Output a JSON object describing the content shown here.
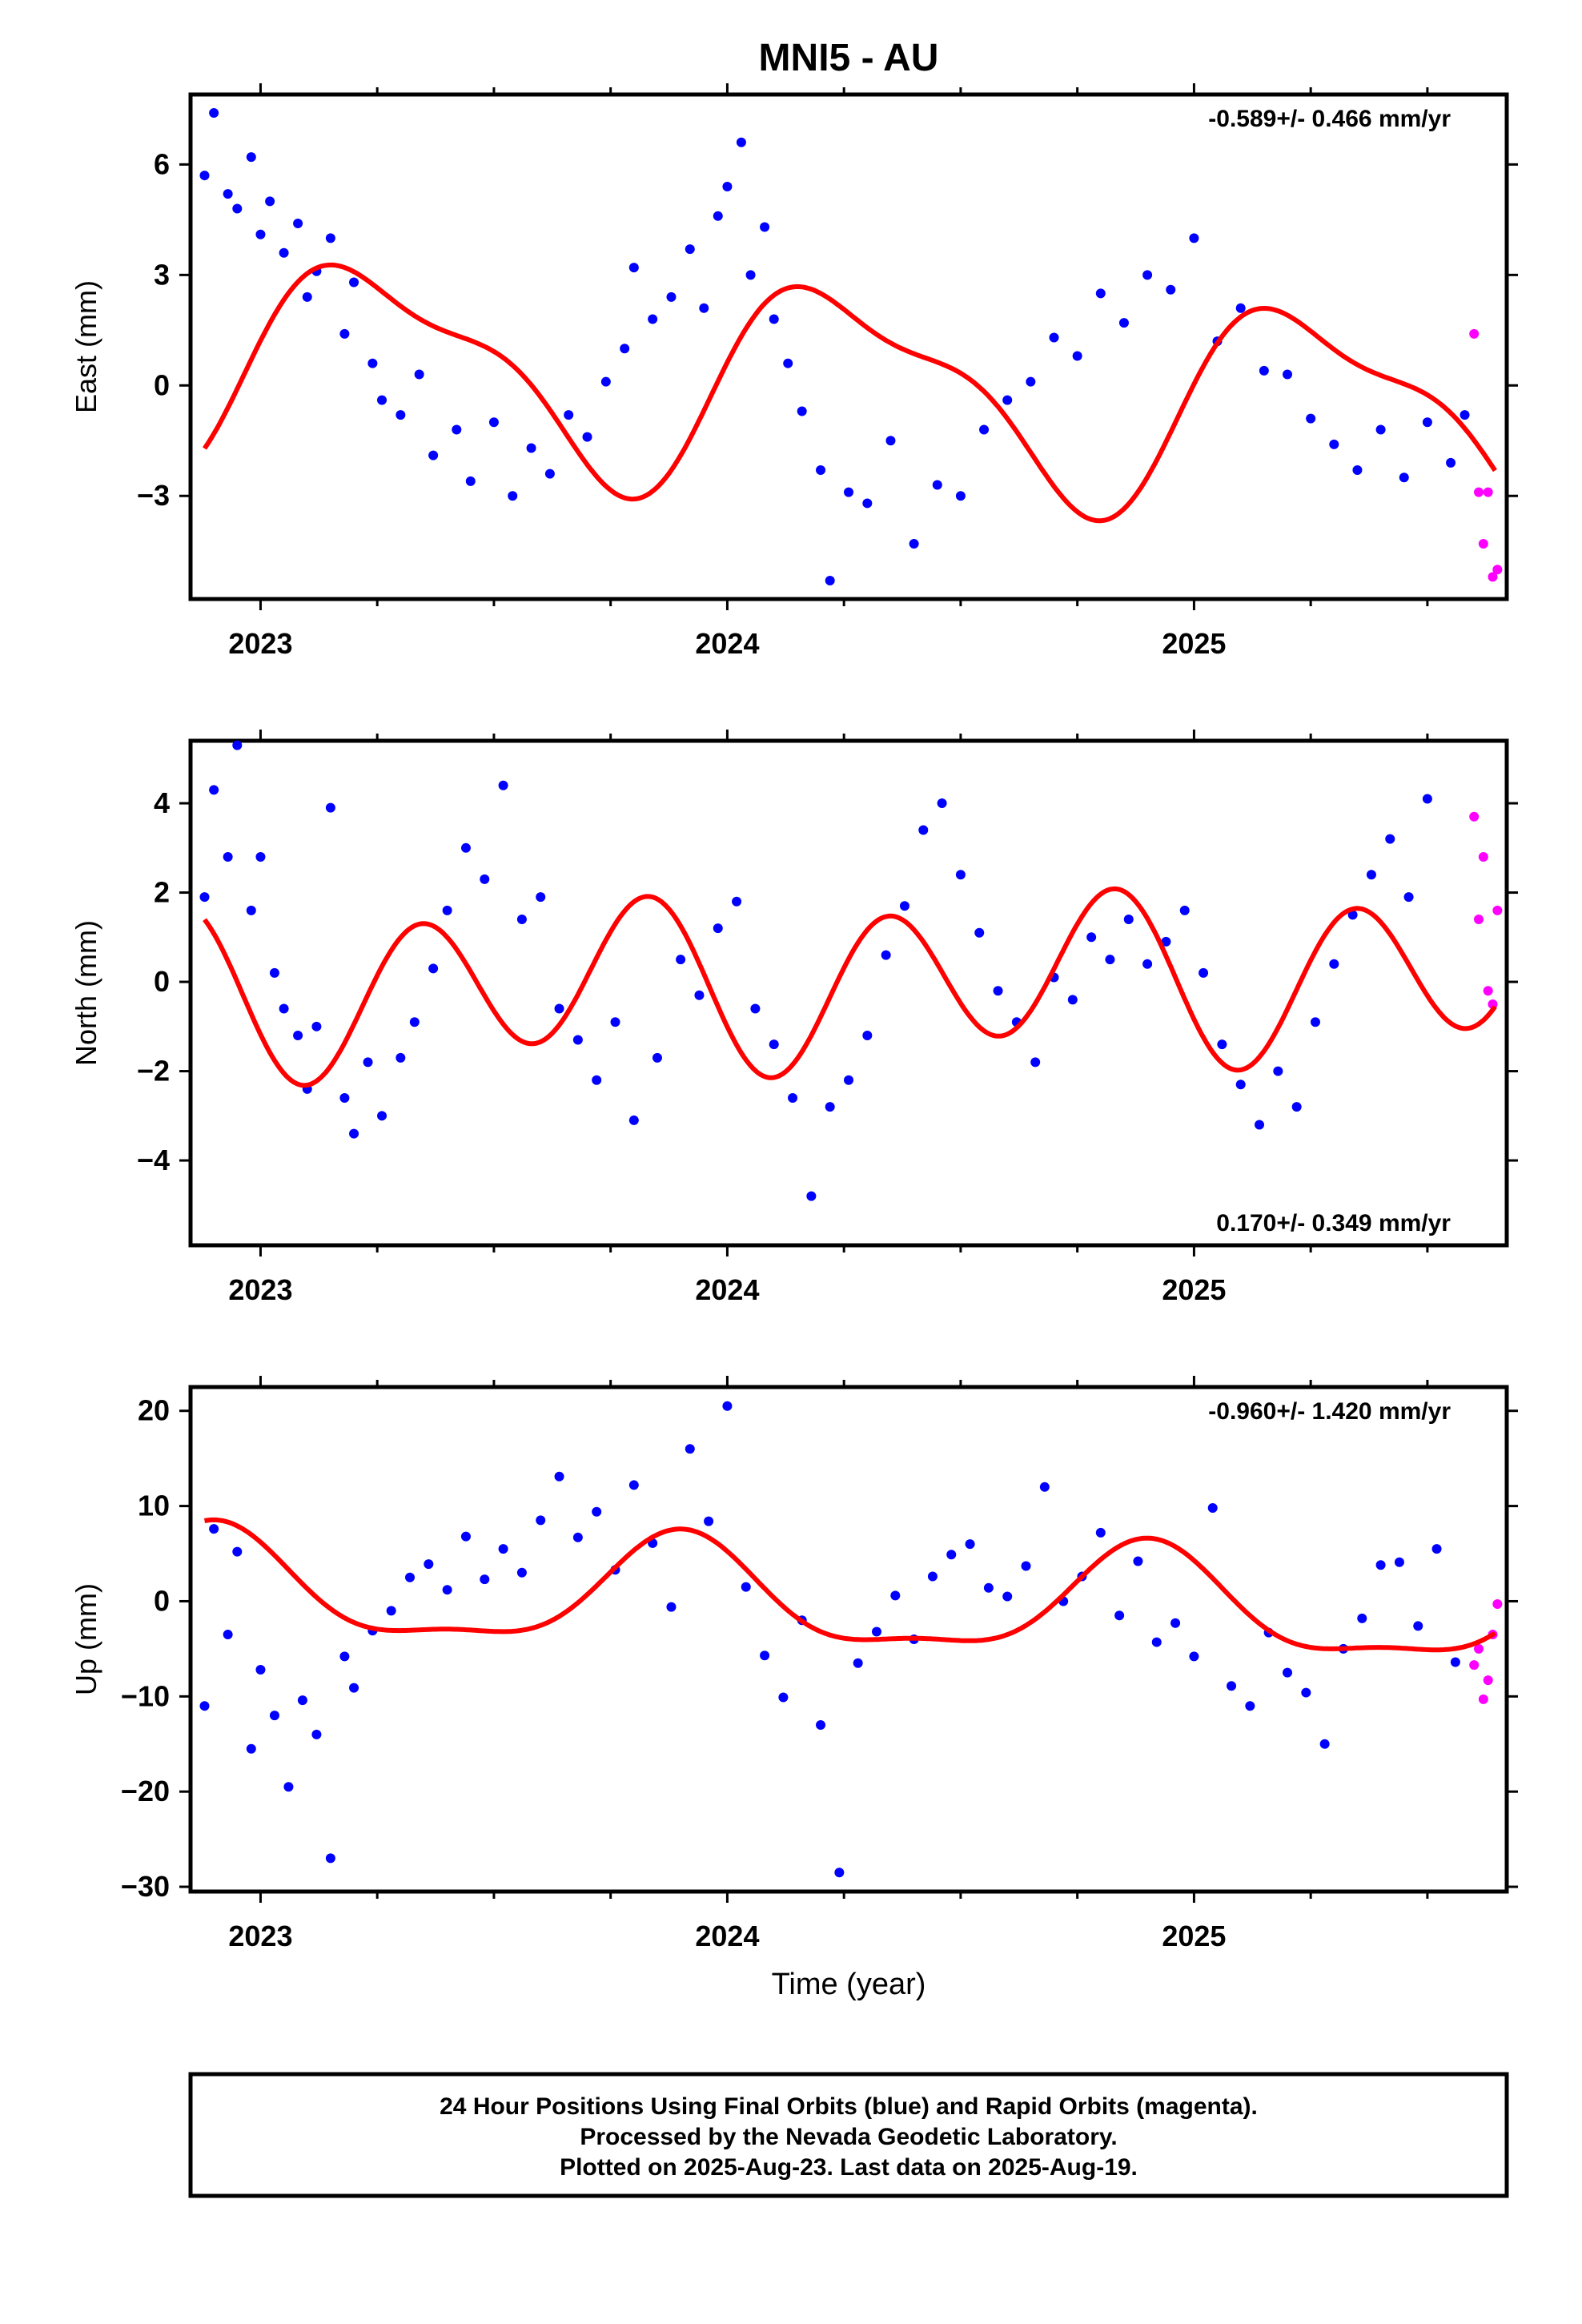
{
  "title": "MNI5 - AU",
  "xlabel": "Time (year)",
  "footer": [
    "24 Hour Positions Using Final Orbits (blue) and Rapid Orbits (magenta).",
    "Processed by the Nevada Geodetic Laboratory.",
    "Plotted on 2025-Aug-23. Last data on 2025-Aug-19."
  ],
  "colors": {
    "final": "#0000ff",
    "rapid": "#ff00ff",
    "model": "#ff0000",
    "frame": "#000000"
  },
  "chart_data": [
    {
      "type": "scatter",
      "ylabel": "East (mm)",
      "rate": "-0.589+/- 0.466 mm/yr",
      "rate_position": "top-right",
      "xlim": [
        2022.85,
        2025.67
      ],
      "ylim": [
        -5.8,
        7.9
      ],
      "yticks": [
        6,
        3,
        0,
        -3
      ],
      "xticks": [
        2023,
        2024,
        2025
      ],
      "model": {
        "mean": 0.0,
        "trend": -0.589,
        "a1": 2.6,
        "p1": 0.0,
        "a2": 0.9,
        "p2": 0.6
      },
      "final_points": [
        [
          2022.88,
          5.7
        ],
        [
          2022.9,
          7.4
        ],
        [
          2022.93,
          5.2
        ],
        [
          2022.95,
          4.8
        ],
        [
          2022.98,
          6.2
        ],
        [
          2023.0,
          4.1
        ],
        [
          2023.02,
          5.0
        ],
        [
          2023.05,
          3.6
        ],
        [
          2023.08,
          4.4
        ],
        [
          2023.1,
          2.4
        ],
        [
          2023.12,
          3.1
        ],
        [
          2023.15,
          4.0
        ],
        [
          2023.18,
          1.4
        ],
        [
          2023.2,
          2.8
        ],
        [
          2023.24,
          0.6
        ],
        [
          2023.26,
          -0.4
        ],
        [
          2023.3,
          -0.8
        ],
        [
          2023.34,
          0.3
        ],
        [
          2023.37,
          -1.9
        ],
        [
          2023.42,
          -1.2
        ],
        [
          2023.45,
          -2.6
        ],
        [
          2023.5,
          -1.0
        ],
        [
          2023.54,
          -3.0
        ],
        [
          2023.58,
          -1.7
        ],
        [
          2023.62,
          -2.4
        ],
        [
          2023.66,
          -0.8
        ],
        [
          2023.7,
          -1.4
        ],
        [
          2023.74,
          0.1
        ],
        [
          2023.78,
          1.0
        ],
        [
          2023.8,
          3.2
        ],
        [
          2023.84,
          1.8
        ],
        [
          2023.88,
          2.4
        ],
        [
          2023.92,
          3.7
        ],
        [
          2023.95,
          2.1
        ],
        [
          2023.98,
          4.6
        ],
        [
          2024.0,
          5.4
        ],
        [
          2024.03,
          6.6
        ],
        [
          2024.05,
          3.0
        ],
        [
          2024.08,
          4.3
        ],
        [
          2024.1,
          1.8
        ],
        [
          2024.13,
          0.6
        ],
        [
          2024.16,
          -0.7
        ],
        [
          2024.2,
          -2.3
        ],
        [
          2024.22,
          -5.3
        ],
        [
          2024.26,
          -2.9
        ],
        [
          2024.3,
          -3.2
        ],
        [
          2024.35,
          -1.5
        ],
        [
          2024.4,
          -4.3
        ],
        [
          2024.45,
          -2.7
        ],
        [
          2024.5,
          -3.0
        ],
        [
          2024.55,
          -1.2
        ],
        [
          2024.6,
          -0.4
        ],
        [
          2024.65,
          0.1
        ],
        [
          2024.7,
          1.3
        ],
        [
          2024.75,
          0.8
        ],
        [
          2024.8,
          2.5
        ],
        [
          2024.85,
          1.7
        ],
        [
          2024.9,
          3.0
        ],
        [
          2024.95,
          2.6
        ],
        [
          2025.0,
          4.0
        ],
        [
          2025.05,
          1.2
        ],
        [
          2025.1,
          2.1
        ],
        [
          2025.15,
          0.4
        ],
        [
          2025.2,
          0.3
        ],
        [
          2025.25,
          -0.9
        ],
        [
          2025.3,
          -1.6
        ],
        [
          2025.35,
          -2.3
        ],
        [
          2025.4,
          -1.2
        ],
        [
          2025.45,
          -2.5
        ],
        [
          2025.5,
          -1.0
        ],
        [
          2025.55,
          -2.1
        ],
        [
          2025.58,
          -0.8
        ]
      ],
      "rapid_points": [
        [
          2025.6,
          1.4
        ],
        [
          2025.61,
          -2.9
        ],
        [
          2025.62,
          -4.3
        ],
        [
          2025.63,
          -2.9
        ],
        [
          2025.64,
          -5.2
        ],
        [
          2025.65,
          -5.0
        ]
      ]
    },
    {
      "type": "scatter",
      "ylabel": "North (mm)",
      "rate": "0.170+/- 0.349 mm/yr",
      "rate_position": "bottom-right",
      "xlim": [
        2022.85,
        2025.67
      ],
      "ylim": [
        -5.9,
        5.4
      ],
      "yticks": [
        4,
        2,
        0,
        -2,
        -4
      ],
      "xticks": [
        2023,
        2024,
        2025
      ],
      "model": {
        "mean": 0.0,
        "trend": 0.17,
        "a1": 0.5,
        "p1": 3.6,
        "a2": 1.7,
        "p2": 3.6
      },
      "final_points": [
        [
          2022.88,
          1.9
        ],
        [
          2022.9,
          4.3
        ],
        [
          2022.93,
          2.8
        ],
        [
          2022.95,
          5.3
        ],
        [
          2022.98,
          1.6
        ],
        [
          2023.0,
          2.8
        ],
        [
          2023.03,
          0.2
        ],
        [
          2023.05,
          -0.6
        ],
        [
          2023.08,
          -1.2
        ],
        [
          2023.1,
          -2.4
        ],
        [
          2023.12,
          -1.0
        ],
        [
          2023.15,
          3.9
        ],
        [
          2023.18,
          -2.6
        ],
        [
          2023.2,
          -3.4
        ],
        [
          2023.23,
          -1.8
        ],
        [
          2023.26,
          -3.0
        ],
        [
          2023.3,
          -1.7
        ],
        [
          2023.33,
          -0.9
        ],
        [
          2023.37,
          0.3
        ],
        [
          2023.4,
          1.6
        ],
        [
          2023.44,
          3.0
        ],
        [
          2023.48,
          2.3
        ],
        [
          2023.52,
          4.4
        ],
        [
          2023.56,
          1.4
        ],
        [
          2023.6,
          1.9
        ],
        [
          2023.64,
          -0.6
        ],
        [
          2023.68,
          -1.3
        ],
        [
          2023.72,
          -2.2
        ],
        [
          2023.76,
          -0.9
        ],
        [
          2023.8,
          -3.1
        ],
        [
          2023.85,
          -1.7
        ],
        [
          2023.9,
          0.5
        ],
        [
          2023.94,
          -0.3
        ],
        [
          2023.98,
          1.2
        ],
        [
          2024.02,
          1.8
        ],
        [
          2024.06,
          -0.6
        ],
        [
          2024.1,
          -1.4
        ],
        [
          2024.14,
          -2.6
        ],
        [
          2024.18,
          -4.8
        ],
        [
          2024.22,
          -2.8
        ],
        [
          2024.26,
          -2.2
        ],
        [
          2024.3,
          -1.2
        ],
        [
          2024.34,
          0.6
        ],
        [
          2024.38,
          1.7
        ],
        [
          2024.42,
          3.4
        ],
        [
          2024.46,
          4.0
        ],
        [
          2024.5,
          2.4
        ],
        [
          2024.54,
          1.1
        ],
        [
          2024.58,
          -0.2
        ],
        [
          2024.62,
          -0.9
        ],
        [
          2024.66,
          -1.8
        ],
        [
          2024.7,
          0.1
        ],
        [
          2024.74,
          -0.4
        ],
        [
          2024.78,
          1.0
        ],
        [
          2024.82,
          0.5
        ],
        [
          2024.86,
          1.4
        ],
        [
          2024.9,
          0.4
        ],
        [
          2024.94,
          0.9
        ],
        [
          2024.98,
          1.6
        ],
        [
          2025.02,
          0.2
        ],
        [
          2025.06,
          -1.4
        ],
        [
          2025.1,
          -2.3
        ],
        [
          2025.14,
          -3.2
        ],
        [
          2025.18,
          -2.0
        ],
        [
          2025.22,
          -2.8
        ],
        [
          2025.26,
          -0.9
        ],
        [
          2025.3,
          0.4
        ],
        [
          2025.34,
          1.5
        ],
        [
          2025.38,
          2.4
        ],
        [
          2025.42,
          3.2
        ],
        [
          2025.46,
          1.9
        ],
        [
          2025.5,
          4.1
        ]
      ],
      "rapid_points": [
        [
          2025.6,
          3.7
        ],
        [
          2025.61,
          1.4
        ],
        [
          2025.62,
          2.8
        ],
        [
          2025.63,
          -0.2
        ],
        [
          2025.64,
          -0.5
        ],
        [
          2025.65,
          1.6
        ]
      ]
    },
    {
      "type": "scatter",
      "ylabel": "Up (mm)",
      "rate": "-0.960+/- 1.420 mm/yr",
      "rate_position": "top-right",
      "xlim": [
        2022.85,
        2025.67
      ],
      "ylim": [
        -30.5,
        22.5
      ],
      "yticks": [
        20,
        10,
        0,
        -10,
        -20,
        -30
      ],
      "xticks": [
        2023,
        2024,
        2025
      ],
      "model": {
        "mean": 0.0,
        "trend": -0.96,
        "a1": 5.5,
        "p1": 2.2,
        "a2": 1.8,
        "p2": 2.8
      },
      "final_points": [
        [
          2022.88,
          -11.0
        ],
        [
          2022.9,
          7.6
        ],
        [
          2022.93,
          -3.5
        ],
        [
          2022.95,
          5.2
        ],
        [
          2022.98,
          -15.5
        ],
        [
          2023.0,
          -7.2
        ],
        [
          2023.03,
          -12.0
        ],
        [
          2023.06,
          -19.5
        ],
        [
          2023.09,
          -10.4
        ],
        [
          2023.12,
          -14.0
        ],
        [
          2023.15,
          -27.0
        ],
        [
          2023.18,
          -5.8
        ],
        [
          2023.2,
          -9.1
        ],
        [
          2023.24,
          -3.1
        ],
        [
          2023.28,
          -1.0
        ],
        [
          2023.32,
          2.5
        ],
        [
          2023.36,
          3.9
        ],
        [
          2023.4,
          1.2
        ],
        [
          2023.44,
          6.8
        ],
        [
          2023.48,
          2.3
        ],
        [
          2023.52,
          5.5
        ],
        [
          2023.56,
          3.0
        ],
        [
          2023.6,
          8.5
        ],
        [
          2023.64,
          13.1
        ],
        [
          2023.68,
          6.7
        ],
        [
          2023.72,
          9.4
        ],
        [
          2023.76,
          3.3
        ],
        [
          2023.8,
          12.2
        ],
        [
          2023.84,
          6.1
        ],
        [
          2023.88,
          -0.6
        ],
        [
          2023.92,
          16.0
        ],
        [
          2023.96,
          8.4
        ],
        [
          2024.0,
          20.5
        ],
        [
          2024.04,
          1.5
        ],
        [
          2024.08,
          -5.7
        ],
        [
          2024.12,
          -10.1
        ],
        [
          2024.16,
          -2.0
        ],
        [
          2024.2,
          -13.0
        ],
        [
          2024.24,
          -28.5
        ],
        [
          2024.28,
          -6.5
        ],
        [
          2024.32,
          -3.2
        ],
        [
          2024.36,
          0.6
        ],
        [
          2024.4,
          -4.0
        ],
        [
          2024.44,
          2.6
        ],
        [
          2024.48,
          4.9
        ],
        [
          2024.52,
          6.0
        ],
        [
          2024.56,
          1.4
        ],
        [
          2024.6,
          0.5
        ],
        [
          2024.64,
          3.7
        ],
        [
          2024.68,
          12.0
        ],
        [
          2024.72,
          0.0
        ],
        [
          2024.76,
          2.6
        ],
        [
          2024.8,
          7.2
        ],
        [
          2024.84,
          -1.5
        ],
        [
          2024.88,
          4.2
        ],
        [
          2024.92,
          -4.3
        ],
        [
          2024.96,
          -2.3
        ],
        [
          2025.0,
          -5.8
        ],
        [
          2025.04,
          9.8
        ],
        [
          2025.08,
          -8.9
        ],
        [
          2025.12,
          -11.0
        ],
        [
          2025.16,
          -3.3
        ],
        [
          2025.2,
          -7.5
        ],
        [
          2025.24,
          -9.6
        ],
        [
          2025.28,
          -15.0
        ],
        [
          2025.32,
          -5.0
        ],
        [
          2025.36,
          -1.8
        ],
        [
          2025.4,
          3.8
        ],
        [
          2025.44,
          4.1
        ],
        [
          2025.48,
          -2.6
        ],
        [
          2025.52,
          5.5
        ],
        [
          2025.56,
          -6.4
        ]
      ],
      "rapid_points": [
        [
          2025.6,
          -6.7
        ],
        [
          2025.61,
          -5.0
        ],
        [
          2025.62,
          -10.3
        ],
        [
          2025.63,
          -8.3
        ],
        [
          2025.64,
          -3.5
        ],
        [
          2025.65,
          -0.3
        ]
      ]
    }
  ]
}
